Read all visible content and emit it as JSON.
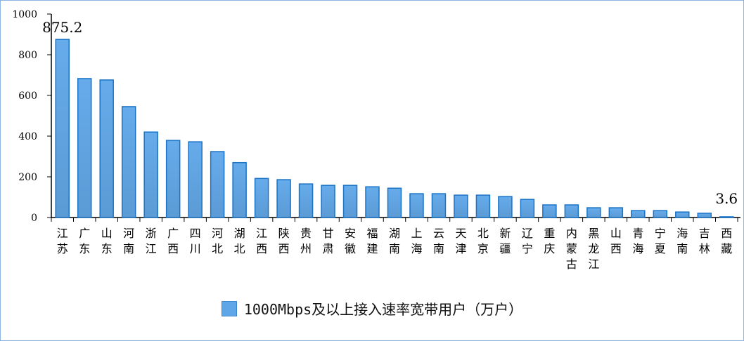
{
  "chart_data": {
    "type": "bar",
    "title": "",
    "xlabel": "",
    "ylabel": "",
    "ylim": [
      0,
      1000
    ],
    "yticks": [
      0,
      200,
      400,
      600,
      800,
      1000
    ],
    "grid": false,
    "legend_position": "bottom",
    "categories": [
      "江苏",
      "广东",
      "山东",
      "河南",
      "浙江",
      "广西",
      "四川",
      "河北",
      "湖北",
      "江西",
      "陕西",
      "贵州",
      "甘肃",
      "安徽",
      "福建",
      "湖南",
      "上海",
      "云南",
      "天津",
      "北京",
      "新疆",
      "辽宁",
      "重庆",
      "内蒙古",
      "黑龙江",
      "山西",
      "青海",
      "宁夏",
      "海南",
      "吉林",
      "西藏"
    ],
    "series": [
      {
        "name": "1000Mbps及以上接入速率宽带用户（万户）",
        "color": "#5fa6e8",
        "values": [
          875.2,
          683,
          676,
          545,
          420,
          379,
          372,
          324,
          270,
          192,
          186,
          165,
          158,
          158,
          151,
          144,
          117,
          117,
          110,
          110,
          103,
          89,
          62,
          62,
          48,
          48,
          34,
          34,
          27,
          21,
          3.6
        ]
      }
    ],
    "data_labels": [
      {
        "category": "江苏",
        "text": "875.2"
      },
      {
        "category": "西藏",
        "text": "3.6"
      }
    ]
  }
}
